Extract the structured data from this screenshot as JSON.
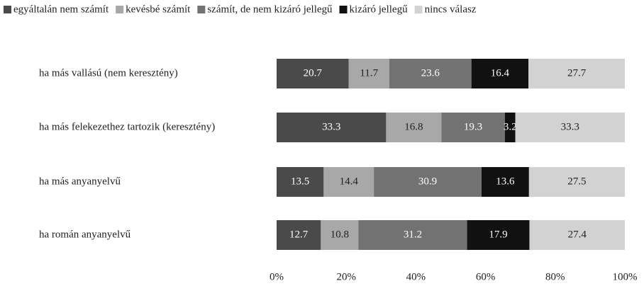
{
  "chart_data": {
    "type": "bar",
    "orientation": "horizontal",
    "stacking": "percent",
    "categories": [
      "ha más vallású (nem keresztény)",
      "ha más felekezethez tartozik (keresztény)",
      "ha más anyanyelvű",
      "ha román anyanyelvű"
    ],
    "series": [
      {
        "name": "egyáltalán nem számít",
        "color": "#4a4a4a",
        "values": [
          20.7,
          33.3,
          13.5,
          12.7
        ]
      },
      {
        "name": "kevésbé számít",
        "color": "#a8a8a8",
        "values": [
          11.7,
          16.8,
          14.4,
          10.8
        ]
      },
      {
        "name": "számít, de nem kizáró jellegű",
        "color": "#727272",
        "values": [
          23.6,
          19.3,
          30.9,
          31.2
        ]
      },
      {
        "name": "kizáró jellegű",
        "color": "#111111",
        "values": [
          16.4,
          3.2,
          13.6,
          17.9
        ]
      },
      {
        "name": "nincs válasz",
        "color": "#d2d2d2",
        "values": [
          27.7,
          33.3,
          27.5,
          27.4
        ]
      }
    ],
    "xlim": [
      0,
      100
    ],
    "xticks": [
      {
        "value": 0,
        "label": "0%"
      },
      {
        "value": 20,
        "label": "20%"
      },
      {
        "value": 40,
        "label": "40%"
      },
      {
        "value": 60,
        "label": "60%"
      },
      {
        "value": 80,
        "label": "80%"
      },
      {
        "value": 100,
        "label": "100%"
      }
    ],
    "legend": "top"
  }
}
